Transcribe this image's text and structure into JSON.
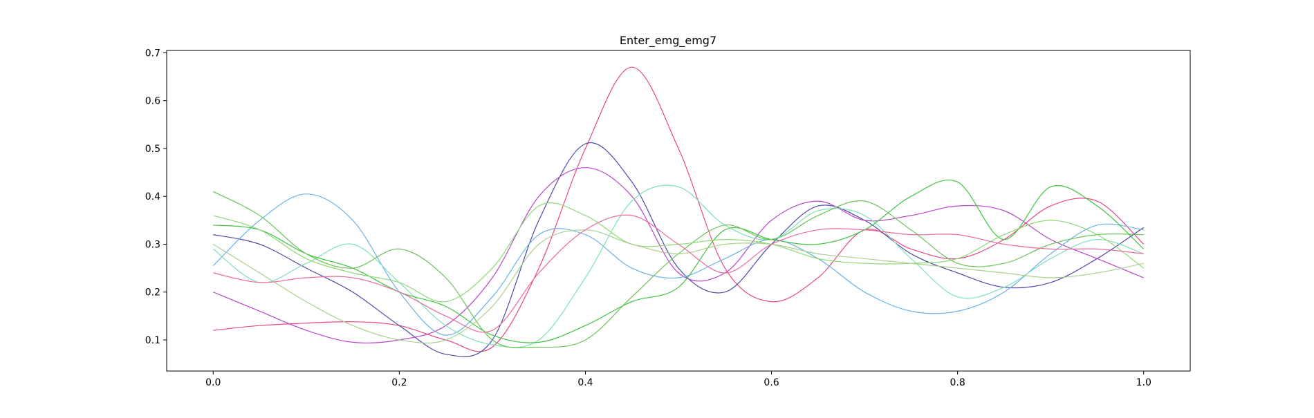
{
  "chart_data": {
    "type": "line",
    "title": "Enter_emg_emg7",
    "xlabel": "",
    "ylabel": "",
    "xlim": [
      -0.05,
      1.05
    ],
    "ylim": [
      0.035,
      0.705
    ],
    "xticks": [
      "0.0",
      "0.2",
      "0.4",
      "0.6",
      "0.8",
      "1.0"
    ],
    "yticks": [
      "0.1",
      "0.2",
      "0.3",
      "0.4",
      "0.5",
      "0.6",
      "0.7"
    ],
    "grid": false,
    "legend": "none",
    "x": [
      0.0,
      0.05,
      0.1,
      0.15,
      0.2,
      0.25,
      0.3,
      0.35,
      0.4,
      0.45,
      0.5,
      0.55,
      0.6,
      0.65,
      0.7,
      0.75,
      0.8,
      0.85,
      0.9,
      0.95,
      1.0
    ],
    "series": [
      {
        "color": "#e8457f",
        "values": [
          0.12,
          0.13,
          0.135,
          0.138,
          0.13,
          0.1,
          0.085,
          0.25,
          0.5,
          0.67,
          0.5,
          0.25,
          0.18,
          0.23,
          0.33,
          0.29,
          0.27,
          0.31,
          0.38,
          0.39,
          0.3
        ]
      },
      {
        "color": "#4a4aa8",
        "values": [
          0.32,
          0.3,
          0.25,
          0.2,
          0.13,
          0.07,
          0.1,
          0.35,
          0.51,
          0.43,
          0.25,
          0.2,
          0.3,
          0.38,
          0.35,
          0.28,
          0.24,
          0.21,
          0.22,
          0.27,
          0.335
        ]
      },
      {
        "color": "#b845c8",
        "values": [
          0.2,
          0.16,
          0.12,
          0.095,
          0.1,
          0.13,
          0.23,
          0.4,
          0.46,
          0.4,
          0.24,
          0.24,
          0.35,
          0.39,
          0.35,
          0.36,
          0.38,
          0.37,
          0.31,
          0.27,
          0.23
        ]
      },
      {
        "color": "#6ab0e8",
        "values": [
          0.255,
          0.35,
          0.405,
          0.35,
          0.2,
          0.11,
          0.19,
          0.32,
          0.32,
          0.25,
          0.23,
          0.27,
          0.31,
          0.27,
          0.2,
          0.16,
          0.16,
          0.2,
          0.28,
          0.34,
          0.33
        ]
      },
      {
        "color": "#7ee0b8",
        "values": [
          0.29,
          0.22,
          0.26,
          0.3,
          0.22,
          0.13,
          0.09,
          0.1,
          0.23,
          0.39,
          0.42,
          0.34,
          0.31,
          0.37,
          0.36,
          0.27,
          0.19,
          0.21,
          0.27,
          0.31,
          0.28
        ]
      },
      {
        "color": "#3fc23f",
        "values": [
          0.34,
          0.33,
          0.28,
          0.25,
          0.2,
          0.17,
          0.11,
          0.095,
          0.13,
          0.18,
          0.21,
          0.33,
          0.31,
          0.3,
          0.33,
          0.4,
          0.43,
          0.31,
          0.42,
          0.38,
          0.29
        ]
      },
      {
        "color": "#6ac255",
        "values": [
          0.41,
          0.36,
          0.28,
          0.25,
          0.29,
          0.23,
          0.1,
          0.085,
          0.1,
          0.19,
          0.28,
          0.34,
          0.31,
          0.36,
          0.39,
          0.33,
          0.26,
          0.26,
          0.3,
          0.32,
          0.32
        ]
      },
      {
        "color": "#8ad875",
        "values": [
          0.36,
          0.33,
          0.27,
          0.24,
          0.22,
          0.18,
          0.25,
          0.38,
          0.36,
          0.3,
          0.3,
          0.31,
          0.3,
          0.27,
          0.26,
          0.26,
          0.27,
          0.32,
          0.35,
          0.32,
          0.25
        ]
      },
      {
        "color": "#a8cf8c",
        "values": [
          0.3,
          0.24,
          0.18,
          0.13,
          0.1,
          0.1,
          0.17,
          0.3,
          0.33,
          0.3,
          0.28,
          0.3,
          0.3,
          0.28,
          0.27,
          0.26,
          0.25,
          0.24,
          0.23,
          0.24,
          0.26
        ]
      },
      {
        "color": "#e86aa0",
        "values": [
          0.24,
          0.22,
          0.23,
          0.23,
          0.2,
          0.15,
          0.12,
          0.24,
          0.33,
          0.36,
          0.3,
          0.24,
          0.3,
          0.33,
          0.33,
          0.32,
          0.32,
          0.3,
          0.29,
          0.29,
          0.28
        ]
      }
    ]
  }
}
